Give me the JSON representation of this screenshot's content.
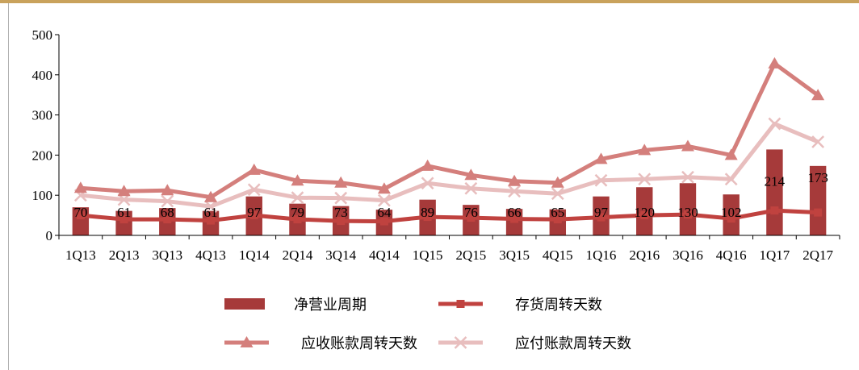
{
  "chart_data": {
    "type": "bar",
    "categories": [
      "1Q13",
      "2Q13",
      "3Q13",
      "4Q13",
      "1Q14",
      "2Q14",
      "3Q14",
      "4Q14",
      "1Q15",
      "2Q15",
      "3Q15",
      "4Q15",
      "1Q16",
      "2Q16",
      "3Q16",
      "4Q16",
      "1Q17",
      "2Q17"
    ],
    "ylim": [
      0,
      500
    ],
    "yticks": [
      0,
      100,
      200,
      300,
      400,
      500
    ],
    "grid": false,
    "legend_position": "bottom",
    "series": [
      {
        "name": "净营业周期",
        "kind": "bar",
        "color": "#a63a3a",
        "values": [
          70,
          61,
          68,
          61,
          97,
          79,
          73,
          64,
          89,
          76,
          66,
          65,
          97,
          120,
          130,
          102,
          214,
          173
        ],
        "labels": [
          "70",
          "61",
          "68",
          "61",
          "97",
          "79",
          "73",
          "64",
          "89",
          "76",
          "66",
          "65",
          "97",
          "120",
          "130",
          "102",
          "214",
          "173"
        ]
      },
      {
        "name": "存货周转天数",
        "kind": "line",
        "marker": "square",
        "color": "#c0423f",
        "values": [
          50,
          40,
          40,
          37,
          50,
          40,
          36,
          35,
          46,
          44,
          41,
          40,
          45,
          50,
          52,
          42,
          62,
          57
        ]
      },
      {
        "name": "应收账款周转天数",
        "kind": "line",
        "marker": "triangle",
        "color": "#d47f7c",
        "values": [
          118,
          110,
          112,
          95,
          163,
          136,
          131,
          116,
          173,
          150,
          135,
          131,
          190,
          212,
          222,
          200,
          428,
          349
        ]
      },
      {
        "name": "应付账款周转天数",
        "kind": "line",
        "marker": "x",
        "color": "#e8bebe",
        "values": [
          100,
          89,
          85,
          72,
          114,
          94,
          93,
          87,
          130,
          117,
          110,
          104,
          137,
          140,
          145,
          140,
          278,
          233
        ]
      }
    ]
  }
}
